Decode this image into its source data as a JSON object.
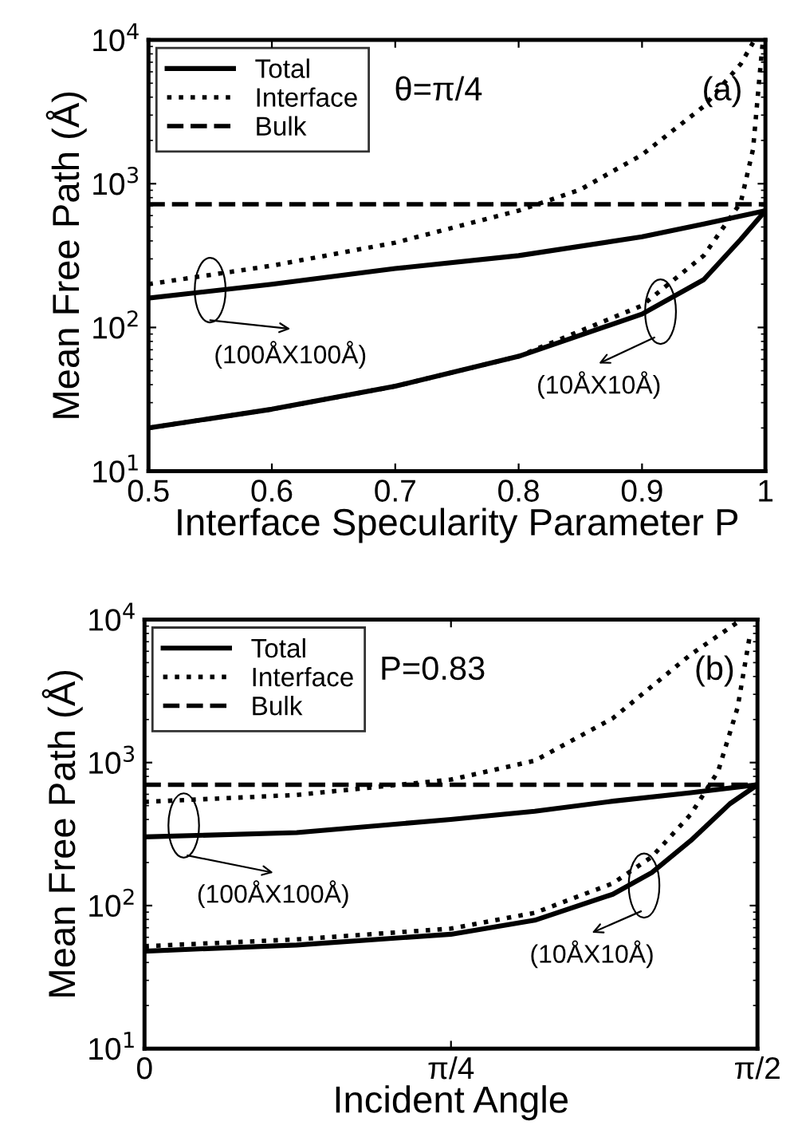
{
  "chart_data": [
    {
      "type": "line",
      "xlabel": "Interface Specularity Parameter P",
      "ylabel": "Mean Free Path (Å)",
      "log": "y",
      "legend": "top left",
      "grid": false,
      "xlim": [
        0.5,
        1
      ],
      "xticks": [
        0.5,
        0.6,
        0.7,
        0.8,
        0.9,
        1
      ],
      "ylim": [
        10,
        10000
      ],
      "yticks": [
        {
          "value": 10,
          "label": "10$^{1}$"
        },
        {
          "value": 100,
          "label": "10$^{2}$"
        },
        {
          "value": 1000,
          "label": "10$^{3}$"
        },
        {
          "value": 10000,
          "label": "10$^{4}$"
        }
      ],
      "annotations": [
        "θ=π/4",
        "(a)",
        "(100ÅX100Å)",
        "(10ÅX10Å)"
      ],
      "series": [
        {
          "name": "Total",
          "color": "#000000",
          "line_style": "solid",
          "x": [
            0.5,
            0.6,
            0.7,
            0.8,
            0.9,
            0.95,
            1.0
          ],
          "values": [
            160,
            200,
            257,
            316,
            427,
            525,
            650
          ]
        },
        {
          "name": "Interface",
          "color": "#000000",
          "line_style": "dotted",
          "x": [
            0.5,
            0.6,
            0.7,
            0.8,
            0.85,
            0.9,
            0.95,
            0.98,
            0.99
          ],
          "values": [
            200,
            269,
            389,
            650,
            910,
            1590,
            3450,
            6800,
            9600
          ]
        },
        {
          "name": "Bulk",
          "color": "#000000",
          "line_style": "dashed",
          "x": [
            0.5,
            1.0
          ],
          "values": [
            720,
            720
          ]
        },
        {
          "color": "#000000",
          "line_style": "solid",
          "x": [
            0.5,
            0.6,
            0.7,
            0.8,
            0.9,
            0.95,
            0.98,
            1.0
          ],
          "values": [
            20,
            27,
            39,
            63,
            124,
            215,
            410,
            650
          ]
        },
        {
          "color": "#000000",
          "line_style": "dotted",
          "x": [
            0.5,
            0.6,
            0.7,
            0.8,
            0.9,
            0.95,
            0.98,
            0.99,
            0.995,
            0.998
          ],
          "values": [
            20,
            27,
            39,
            63,
            142,
            316,
            740,
            1740,
            5300,
            10000
          ]
        }
      ]
    },
    {
      "type": "line",
      "xlabel": "Incident Angle",
      "ylabel": "Mean Free Path (Å)",
      "log": "y",
      "legend": "top left",
      "grid": false,
      "xlim": [
        0,
        1.5708
      ],
      "xticks": [
        0,
        {
          "value": 0.7854,
          "label": "π/4"
        },
        {
          "value": 1.5708,
          "label": "π/2"
        }
      ],
      "ylim": [
        10,
        10000
      ],
      "yticks": [
        {
          "value": 10,
          "label": "10$^{1}$"
        },
        {
          "value": 100,
          "label": "10$^{2}$"
        },
        {
          "value": 1000,
          "label": "10$^{3}$"
        },
        {
          "value": 10000,
          "label": "10$^{4}$"
        }
      ],
      "annotations": [
        "P=0.83",
        "(b)",
        "(100ÅX100Å)",
        "(10ÅX10Å)"
      ],
      "series": [
        {
          "name": "Total",
          "color": "#000000",
          "line_style": "solid",
          "x": [
            0,
            0.39,
            0.785,
            1.0,
            1.2,
            1.4,
            1.5708
          ],
          "values": [
            302,
            324,
            400,
            457,
            537,
            615,
            700
          ]
        },
        {
          "name": "Interface",
          "color": "#000000",
          "line_style": "dotted",
          "x": [
            0,
            0.39,
            0.785,
            1.0,
            1.2,
            1.4,
            1.53
          ],
          "values": [
            531,
            594,
            760,
            1030,
            2040,
            5700,
            10000
          ]
        },
        {
          "name": "Bulk",
          "color": "#000000",
          "line_style": "dashed",
          "x": [
            0,
            1.5708
          ],
          "values": [
            700,
            700
          ]
        },
        {
          "color": "#000000",
          "line_style": "solid",
          "x": [
            0,
            0.39,
            0.785,
            1.0,
            1.2,
            1.3,
            1.4,
            1.5,
            1.5708
          ],
          "values": [
            48,
            53,
            63,
            79,
            120,
            170,
            285,
            515,
            700
          ]
        },
        {
          "color": "#000000",
          "line_style": "dotted",
          "x": [
            0,
            0.39,
            0.785,
            1.0,
            1.2,
            1.3,
            1.4,
            1.47,
            1.52,
            1.55
          ],
          "values": [
            52,
            58,
            69,
            89,
            143,
            219,
            435,
            870,
            2430,
            7400
          ]
        }
      ]
    }
  ]
}
